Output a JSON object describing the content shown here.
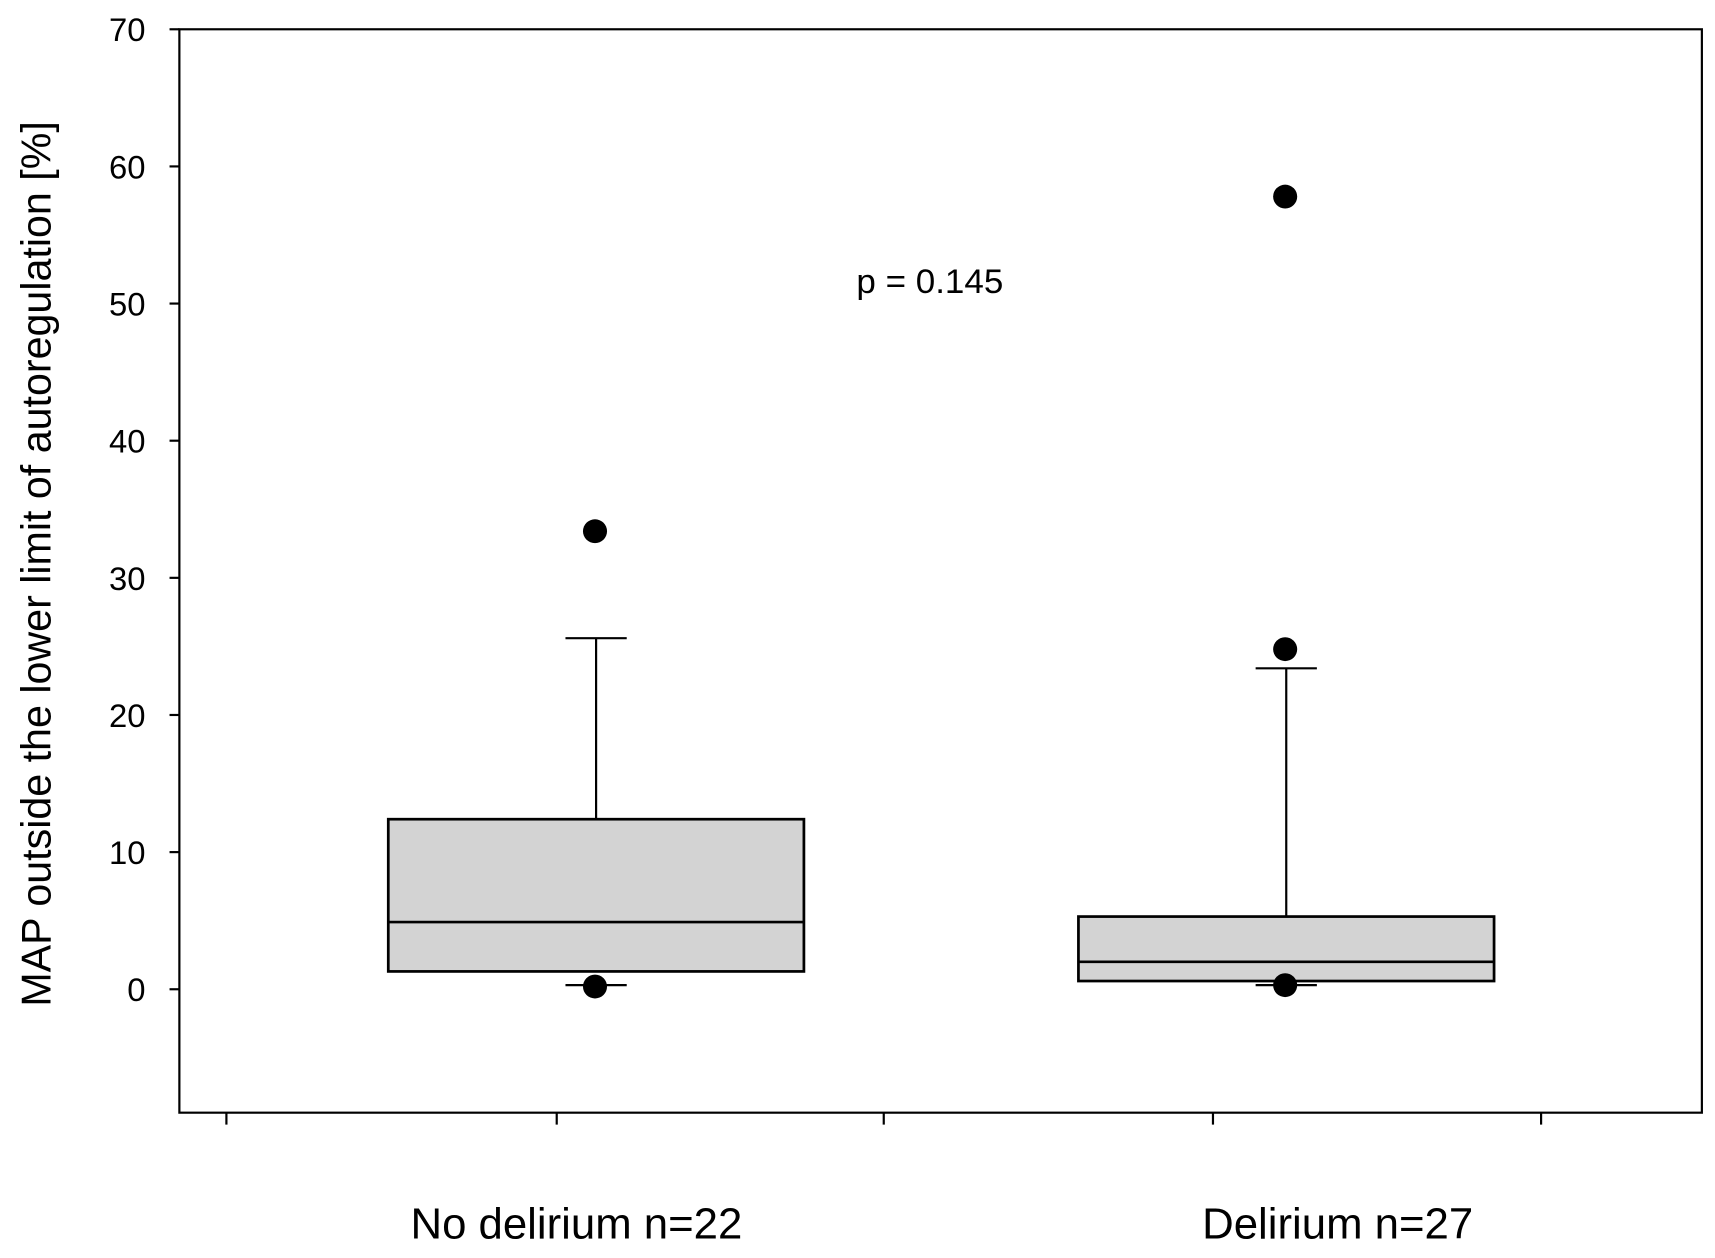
{
  "chart_data": {
    "type": "box",
    "title": "",
    "xlabel": "",
    "ylabel": "MAP outside the lower limit of autoregulation [%]",
    "ylim": [
      -9,
      70
    ],
    "yticks": [
      0,
      10,
      20,
      30,
      40,
      50,
      60,
      70
    ],
    "ytick_labels": [
      "0",
      "10",
      "20",
      "30",
      "40",
      "50",
      "60",
      "70"
    ],
    "grid": false,
    "categories": [
      "No delirium n=22",
      "Delirium n=27"
    ],
    "boxes": [
      {
        "name": "No delirium n=22",
        "whisker_low": 0.3,
        "q1": 1.3,
        "median": 4.9,
        "q3": 12.4,
        "whisker_high": 25.6,
        "outliers": [
          33.4,
          0.2
        ]
      },
      {
        "name": "Delirium n=27",
        "whisker_low": 0.3,
        "q1": 0.6,
        "median": 2.0,
        "q3": 5.3,
        "whisker_high": 23.4,
        "outliers": [
          57.8,
          24.8,
          0.3
        ]
      }
    ],
    "box_fill": "#d3d3d3",
    "annotation": "p = 0.145"
  }
}
